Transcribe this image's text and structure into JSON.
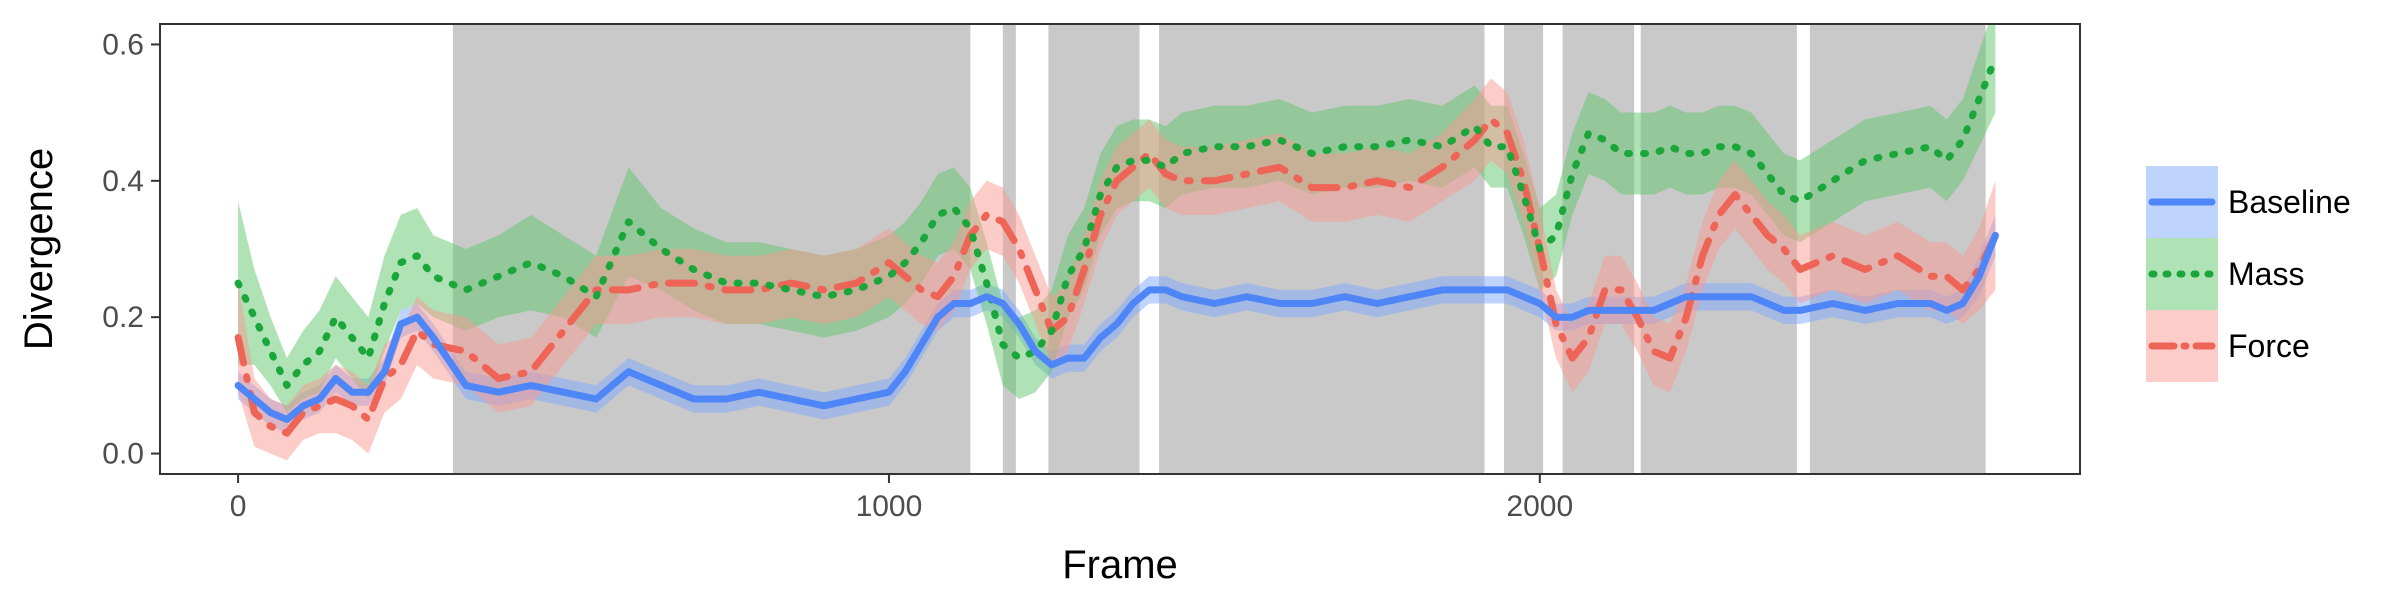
{
  "chart_data": {
    "type": "line",
    "xlabel": "Frame",
    "ylabel": "Divergence",
    "xlim": [
      -120,
      2830
    ],
    "ylim": [
      -0.03,
      0.63
    ],
    "x_ticks": [
      {
        "value": 0,
        "label": "0"
      },
      {
        "value": 1000,
        "label": "1000"
      },
      {
        "value": 2000,
        "label": "2000"
      }
    ],
    "y_ticks": [
      {
        "value": 0.0,
        "label": "0.0"
      },
      {
        "value": 0.2,
        "label": "0.2"
      },
      {
        "value": 0.4,
        "label": "0.4"
      },
      {
        "value": 0.6,
        "label": "0.6"
      }
    ],
    "grid": false,
    "legend_position": "right",
    "shaded_regions": [
      [
        330,
        1125
      ],
      [
        1175,
        1195
      ],
      [
        1245,
        1385
      ],
      [
        1415,
        1915
      ],
      [
        1945,
        2005
      ],
      [
        2035,
        2145
      ],
      [
        2155,
        2395
      ],
      [
        2415,
        2685
      ]
    ],
    "shaded_color": "#c9c9c9",
    "x": [
      0,
      25,
      50,
      75,
      100,
      125,
      150,
      175,
      200,
      225,
      250,
      275,
      300,
      350,
      400,
      450,
      500,
      550,
      600,
      650,
      700,
      750,
      800,
      850,
      900,
      950,
      1000,
      1025,
      1050,
      1075,
      1100,
      1125,
      1150,
      1175,
      1200,
      1225,
      1250,
      1275,
      1300,
      1325,
      1350,
      1375,
      1400,
      1425,
      1450,
      1500,
      1550,
      1600,
      1650,
      1700,
      1750,
      1800,
      1850,
      1900,
      1925,
      1950,
      1975,
      2000,
      2025,
      2050,
      2075,
      2100,
      2125,
      2150,
      2175,
      2200,
      2225,
      2250,
      2275,
      2300,
      2325,
      2350,
      2375,
      2400,
      2450,
      2500,
      2550,
      2600,
      2625,
      2650,
      2675,
      2700
    ],
    "series": [
      {
        "name": "Baseline",
        "color": "#4f86f7",
        "band_color": "#7fa8ff",
        "dash": "solid",
        "values": [
          0.1,
          0.08,
          0.06,
          0.05,
          0.07,
          0.08,
          0.11,
          0.09,
          0.09,
          0.12,
          0.19,
          0.2,
          0.17,
          0.1,
          0.09,
          0.1,
          0.09,
          0.08,
          0.12,
          0.1,
          0.08,
          0.08,
          0.09,
          0.08,
          0.07,
          0.08,
          0.09,
          0.12,
          0.16,
          0.2,
          0.22,
          0.22,
          0.23,
          0.22,
          0.19,
          0.15,
          0.13,
          0.14,
          0.14,
          0.17,
          0.19,
          0.22,
          0.24,
          0.24,
          0.23,
          0.22,
          0.23,
          0.22,
          0.22,
          0.23,
          0.22,
          0.23,
          0.24,
          0.24,
          0.24,
          0.24,
          0.23,
          0.22,
          0.2,
          0.2,
          0.21,
          0.21,
          0.21,
          0.21,
          0.21,
          0.22,
          0.23,
          0.23,
          0.23,
          0.23,
          0.23,
          0.22,
          0.21,
          0.21,
          0.22,
          0.21,
          0.22,
          0.22,
          0.21,
          0.22,
          0.26,
          0.32
        ],
        "band": [
          0.02,
          0.02,
          0.02,
          0.02,
          0.02,
          0.02,
          0.02,
          0.02,
          0.02,
          0.02,
          0.02,
          0.02,
          0.02,
          0.02,
          0.02,
          0.02,
          0.02,
          0.02,
          0.02,
          0.02,
          0.02,
          0.02,
          0.02,
          0.02,
          0.02,
          0.02,
          0.02,
          0.02,
          0.02,
          0.02,
          0.02,
          0.02,
          0.02,
          0.02,
          0.02,
          0.02,
          0.02,
          0.02,
          0.02,
          0.02,
          0.02,
          0.02,
          0.02,
          0.02,
          0.02,
          0.02,
          0.02,
          0.02,
          0.02,
          0.02,
          0.02,
          0.02,
          0.02,
          0.02,
          0.02,
          0.02,
          0.02,
          0.02,
          0.02,
          0.02,
          0.02,
          0.02,
          0.02,
          0.02,
          0.02,
          0.02,
          0.02,
          0.02,
          0.02,
          0.02,
          0.02,
          0.02,
          0.02,
          0.02,
          0.02,
          0.02,
          0.02,
          0.02,
          0.02,
          0.02,
          0.03,
          0.03
        ]
      },
      {
        "name": "Mass",
        "color": "#1aa63a",
        "band_color": "#5fc56b",
        "dash": "dotted",
        "values": [
          0.25,
          0.2,
          0.15,
          0.1,
          0.13,
          0.15,
          0.2,
          0.17,
          0.14,
          0.22,
          0.28,
          0.29,
          0.26,
          0.24,
          0.26,
          0.28,
          0.26,
          0.23,
          0.34,
          0.3,
          0.27,
          0.25,
          0.25,
          0.24,
          0.23,
          0.24,
          0.26,
          0.28,
          0.31,
          0.35,
          0.36,
          0.33,
          0.25,
          0.16,
          0.14,
          0.15,
          0.18,
          0.26,
          0.3,
          0.38,
          0.42,
          0.43,
          0.43,
          0.42,
          0.44,
          0.45,
          0.45,
          0.46,
          0.44,
          0.45,
          0.45,
          0.46,
          0.45,
          0.48,
          0.45,
          0.45,
          0.38,
          0.3,
          0.32,
          0.41,
          0.47,
          0.46,
          0.44,
          0.44,
          0.44,
          0.45,
          0.44,
          0.44,
          0.45,
          0.45,
          0.44,
          0.41,
          0.38,
          0.37,
          0.4,
          0.43,
          0.44,
          0.45,
          0.43,
          0.46,
          0.52,
          0.58
        ],
        "band": [
          0.12,
          0.07,
          0.05,
          0.04,
          0.05,
          0.06,
          0.06,
          0.06,
          0.06,
          0.07,
          0.07,
          0.07,
          0.06,
          0.06,
          0.06,
          0.07,
          0.06,
          0.06,
          0.08,
          0.06,
          0.06,
          0.06,
          0.06,
          0.06,
          0.06,
          0.06,
          0.06,
          0.06,
          0.06,
          0.06,
          0.06,
          0.06,
          0.06,
          0.06,
          0.06,
          0.06,
          0.06,
          0.06,
          0.06,
          0.06,
          0.06,
          0.06,
          0.06,
          0.06,
          0.06,
          0.06,
          0.06,
          0.06,
          0.06,
          0.06,
          0.06,
          0.06,
          0.06,
          0.06,
          0.06,
          0.06,
          0.06,
          0.06,
          0.06,
          0.06,
          0.06,
          0.06,
          0.06,
          0.06,
          0.06,
          0.06,
          0.06,
          0.06,
          0.06,
          0.06,
          0.06,
          0.06,
          0.06,
          0.06,
          0.06,
          0.06,
          0.06,
          0.06,
          0.06,
          0.06,
          0.07,
          0.08
        ]
      },
      {
        "name": "Force",
        "color": "#ee6457",
        "band_color": "#f79a92",
        "dash": "dashdot",
        "values": [
          0.17,
          0.06,
          0.04,
          0.03,
          0.06,
          0.07,
          0.08,
          0.07,
          0.05,
          0.11,
          0.13,
          0.18,
          0.16,
          0.15,
          0.11,
          0.12,
          0.18,
          0.24,
          0.24,
          0.25,
          0.25,
          0.24,
          0.24,
          0.25,
          0.24,
          0.25,
          0.28,
          0.26,
          0.24,
          0.23,
          0.26,
          0.32,
          0.35,
          0.34,
          0.3,
          0.24,
          0.18,
          0.2,
          0.27,
          0.35,
          0.4,
          0.42,
          0.44,
          0.41,
          0.4,
          0.4,
          0.41,
          0.42,
          0.39,
          0.39,
          0.4,
          0.39,
          0.42,
          0.46,
          0.49,
          0.47,
          0.4,
          0.3,
          0.19,
          0.14,
          0.17,
          0.24,
          0.24,
          0.2,
          0.15,
          0.14,
          0.2,
          0.29,
          0.35,
          0.38,
          0.35,
          0.32,
          0.3,
          0.27,
          0.29,
          0.27,
          0.29,
          0.26,
          0.26,
          0.24,
          0.27,
          0.32
        ],
        "band": [
          0.08,
          0.05,
          0.04,
          0.04,
          0.04,
          0.04,
          0.05,
          0.05,
          0.05,
          0.05,
          0.05,
          0.05,
          0.05,
          0.05,
          0.05,
          0.05,
          0.05,
          0.05,
          0.05,
          0.05,
          0.05,
          0.05,
          0.05,
          0.05,
          0.05,
          0.05,
          0.05,
          0.05,
          0.05,
          0.05,
          0.05,
          0.05,
          0.05,
          0.05,
          0.05,
          0.05,
          0.05,
          0.05,
          0.05,
          0.05,
          0.05,
          0.05,
          0.05,
          0.05,
          0.05,
          0.05,
          0.05,
          0.05,
          0.05,
          0.05,
          0.05,
          0.05,
          0.05,
          0.06,
          0.06,
          0.06,
          0.06,
          0.06,
          0.05,
          0.05,
          0.05,
          0.05,
          0.05,
          0.05,
          0.05,
          0.05,
          0.05,
          0.05,
          0.05,
          0.05,
          0.05,
          0.05,
          0.05,
          0.05,
          0.05,
          0.05,
          0.05,
          0.05,
          0.05,
          0.05,
          0.06,
          0.08
        ]
      }
    ]
  }
}
